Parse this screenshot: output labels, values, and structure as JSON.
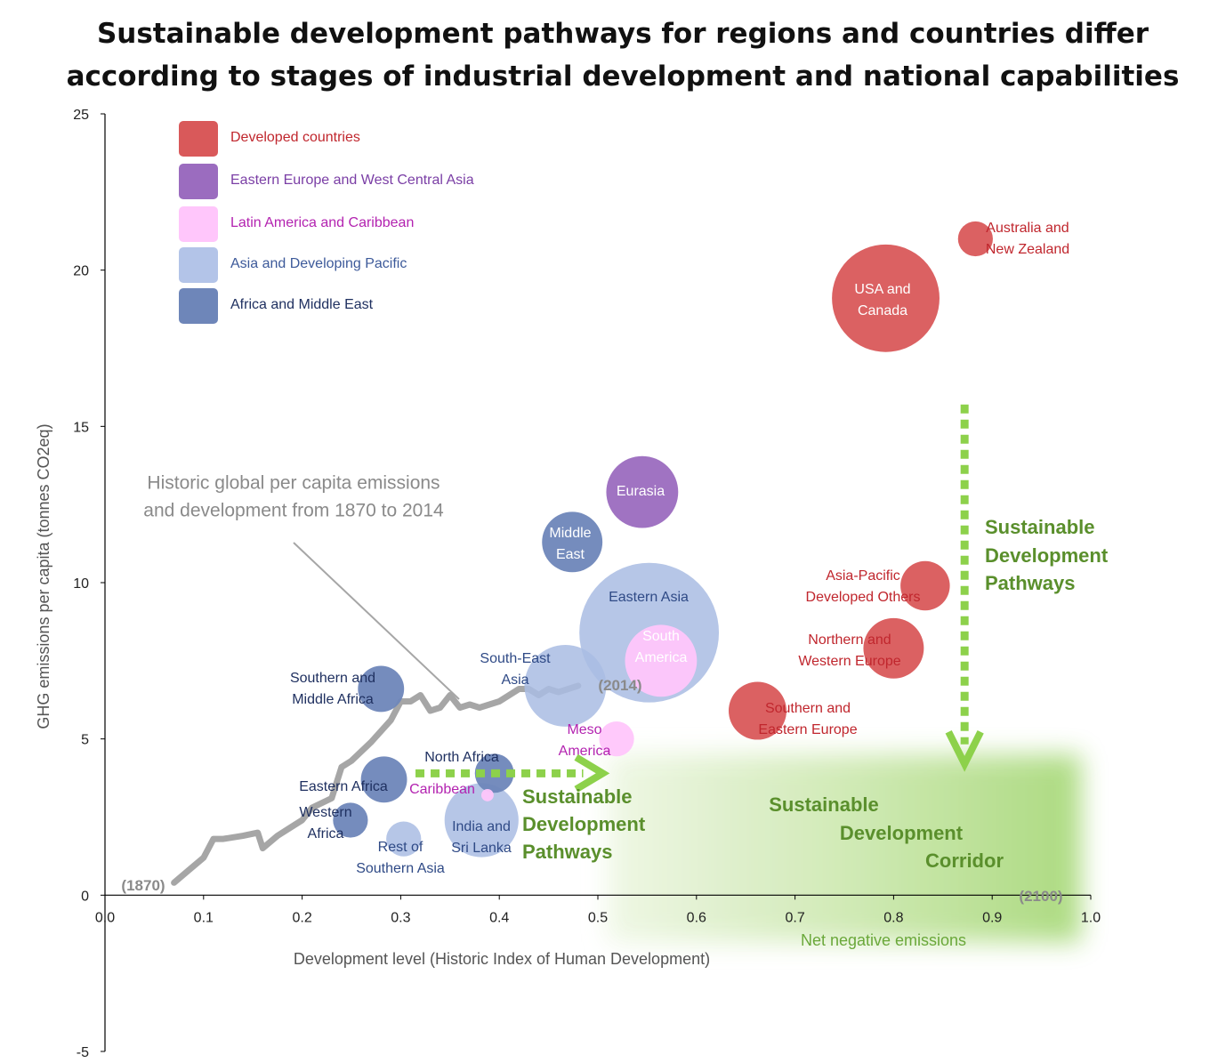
{
  "title_lines": [
    "Sustainable development pathways for regions and countries differ",
    "according to stages of industrial development and national capabilities"
  ],
  "colors": {
    "developed": "#d9595a",
    "eastern_europe": "#9b6cbf",
    "latin_america": "#ffc6fb",
    "asia_pacific": "#a9bce3",
    "africa_me": "#6e86b9",
    "historic_line": "#a6a6a6",
    "pathway_green": "#8dd14b",
    "pathway_text": "#5a8f2c",
    "corridor_green": "#c7e6a8"
  },
  "legend": [
    {
      "label": "Developed countries",
      "color": "#d9595a",
      "text_color": "#c0262d"
    },
    {
      "label": "Eastern Europe and West Central Asia",
      "color": "#9b6cbf",
      "text_color": "#7a3ea5"
    },
    {
      "label": "Latin America and Caribbean",
      "color": "#ffc6fb",
      "text_color": "#b323b0"
    },
    {
      "label": "Asia and Developing Pacific",
      "color": "#b3c4e8",
      "text_color": "#3d5a9a"
    },
    {
      "label": "Africa and Middle East",
      "color": "#6e86b9",
      "text_color": "#1f3060"
    }
  ],
  "chart_data": {
    "type": "scatter",
    "title": "Sustainable development pathways for regions and countries differ according to stages of industrial development and national capabilities",
    "xlabel": "Development level (Historic Index of Human Development)",
    "ylabel": "GHG emissions per capita (tonnes CO2eq)",
    "xlim": [
      0,
      1.0
    ],
    "ylim": [
      -5,
      25
    ],
    "x_ticks": [
      "0.0",
      "0.1",
      "0.2",
      "0.3",
      "0.4",
      "0.5",
      "0.6",
      "0.7",
      "0.8",
      "0.9",
      "1.0"
    ],
    "y_ticks": [
      "-5",
      "0",
      "5",
      "10",
      "15",
      "20",
      "25"
    ],
    "grid": false,
    "legend_position": "top-left",
    "bubbles": [
      {
        "label": [
          "Australia and",
          "New Zealand"
        ],
        "x": 0.883,
        "y": 21.0,
        "size": 0.4,
        "group": "developed"
      },
      {
        "label": [
          "USA and",
          "Canada"
        ],
        "x": 0.792,
        "y": 19.1,
        "size": 3.8,
        "group": "developed"
      },
      {
        "label": [
          "Asia-Pacific",
          "Developed Others"
        ],
        "x": 0.832,
        "y": 9.9,
        "size": 0.8,
        "group": "developed"
      },
      {
        "label": [
          "Northern and",
          "Western Europe"
        ],
        "x": 0.8,
        "y": 7.9,
        "size": 1.2,
        "group": "developed"
      },
      {
        "label": [
          "Southern and",
          "Eastern Europe"
        ],
        "x": 0.662,
        "y": 5.9,
        "size": 1.1,
        "group": "developed"
      },
      {
        "label": [
          "Eurasia"
        ],
        "x": 0.545,
        "y": 12.9,
        "size": 1.7,
        "group": "eastern_europe"
      },
      {
        "label": [
          "Middle",
          "East"
        ],
        "x": 0.474,
        "y": 11.3,
        "size": 1.2,
        "group": "africa_me"
      },
      {
        "label": [
          "Eastern Asia"
        ],
        "x": 0.552,
        "y": 8.4,
        "size": 6.4,
        "group": "asia_pacific"
      },
      {
        "label": [
          "South",
          "America"
        ],
        "x": 0.564,
        "y": 7.5,
        "size": 1.7,
        "group": "latin_america"
      },
      {
        "label": [
          "South-East",
          "Asia"
        ],
        "x": 0.467,
        "y": 6.7,
        "size": 2.2,
        "group": "asia_pacific"
      },
      {
        "label": [
          "Meso",
          "America"
        ],
        "x": 0.519,
        "y": 5.0,
        "size": 0.4,
        "group": "latin_america"
      },
      {
        "label": [
          "Southern and",
          "Middle Africa"
        ],
        "x": 0.28,
        "y": 6.6,
        "size": 0.7,
        "group": "africa_me"
      },
      {
        "label": [
          "Eastern Africa"
        ],
        "x": 0.283,
        "y": 3.7,
        "size": 0.7,
        "group": "africa_me"
      },
      {
        "label": [
          "North Africa"
        ],
        "x": 0.395,
        "y": 3.9,
        "size": 0.5,
        "group": "africa_me"
      },
      {
        "label": [
          "Caribbean"
        ],
        "x": 0.388,
        "y": 3.2,
        "size": 0.05,
        "group": "latin_america"
      },
      {
        "label": [
          "Western",
          "Africa"
        ],
        "x": 0.249,
        "y": 2.4,
        "size": 0.4,
        "group": "africa_me"
      },
      {
        "label": [
          "Rest of",
          "Southern Asia"
        ],
        "x": 0.303,
        "y": 1.8,
        "size": 0.4,
        "group": "asia_pacific"
      },
      {
        "label": [
          "India and",
          "Sri Lanka"
        ],
        "x": 0.382,
        "y": 2.4,
        "size": 1.8,
        "group": "asia_pacific"
      }
    ],
    "historic_series": {
      "name": "Historic global per capita emissions and development from 1870 to 2014",
      "x": [
        0.07,
        0.085,
        0.1,
        0.11,
        0.12,
        0.14,
        0.155,
        0.16,
        0.175,
        0.19,
        0.2,
        0.21,
        0.23,
        0.24,
        0.25,
        0.27,
        0.29,
        0.3,
        0.31,
        0.32,
        0.33,
        0.34,
        0.35,
        0.36,
        0.37,
        0.38,
        0.39,
        0.4,
        0.41,
        0.42,
        0.43,
        0.44,
        0.45,
        0.46,
        0.47,
        0.48
      ],
      "y": [
        0.4,
        0.8,
        1.2,
        1.8,
        1.8,
        1.9,
        2.0,
        1.5,
        1.9,
        2.2,
        2.4,
        2.8,
        3.1,
        4.1,
        4.3,
        4.9,
        5.6,
        6.2,
        6.2,
        6.4,
        5.9,
        6.0,
        6.4,
        6.0,
        6.1,
        6.0,
        6.1,
        6.2,
        6.4,
        6.6,
        6.6,
        6.4,
        6.6,
        6.5,
        6.6,
        6.7
      ]
    },
    "annotations": {
      "historic": [
        "Historic global per capita emissions",
        "and development from 1870 to 2014"
      ],
      "start_year": "(1870)",
      "end_year": "(2014)",
      "future_year": "(2100)",
      "net_negative": "Net negative emissions",
      "pathways": [
        "Sustainable",
        "Development",
        "Pathways"
      ],
      "corridor": [
        "Sustainable",
        "Development",
        "Corridor"
      ]
    },
    "corridor": {
      "x": [
        0.51,
        0.99
      ],
      "y": [
        -1.5,
        4.5
      ]
    },
    "horizontal_pathway": {
      "x": [
        0.315,
        0.505
      ],
      "y": 3.9
    },
    "vertical_pathway": {
      "x": 0.872,
      "y": [
        15.7,
        4.2
      ]
    }
  }
}
